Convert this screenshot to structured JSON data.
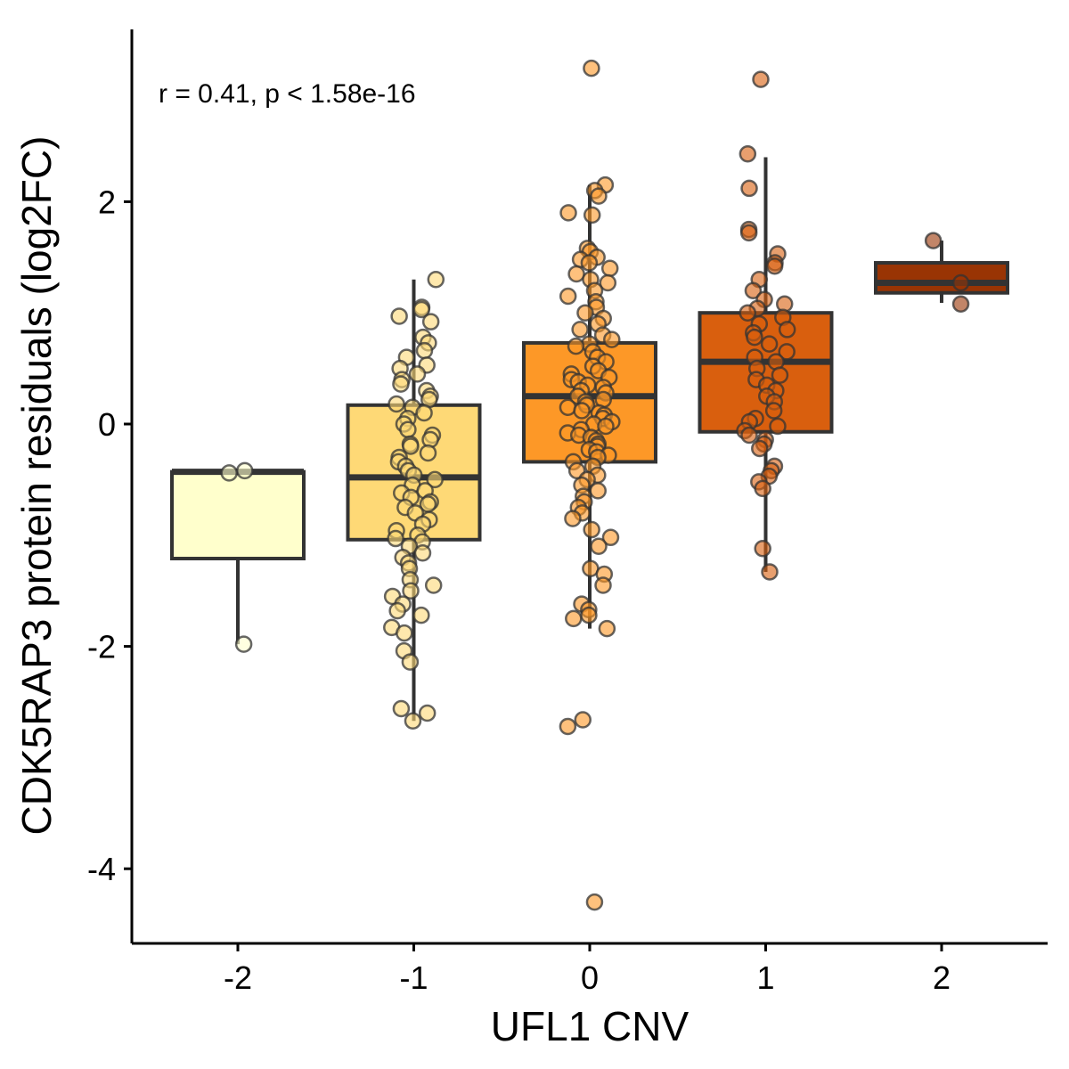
{
  "chart_data": {
    "type": "box",
    "title": "",
    "xlabel": "UFL1 CNV",
    "ylabel": "CDK5RAP3 protein residuals (log2FC)",
    "annotation": "r =  0.41,  p <  1.58e-16",
    "categories": [
      "-2",
      "-1",
      "0",
      "1",
      "2"
    ],
    "yticks": [
      -4,
      -2,
      0,
      2
    ],
    "ytick_labels": [
      "-4",
      "-2",
      "0",
      "2"
    ],
    "ylim": [
      -4.65,
      3.55
    ],
    "grid": false,
    "legend": "none",
    "colors": [
      "#FFFFCC",
      "#FED976",
      "#FD9827",
      "#D95F0E",
      "#993404"
    ],
    "boxes": [
      {
        "category": "-2",
        "q1": -1.21,
        "median": -0.43,
        "q3": -0.43,
        "whisker_low": -1.98,
        "whisker_high": -0.43
      },
      {
        "category": "-1",
        "q1": -1.04,
        "median": -0.48,
        "q3": 0.17,
        "whisker_low": -2.67,
        "whisker_high": 1.3
      },
      {
        "category": "0",
        "q1": -0.34,
        "median": 0.25,
        "q3": 0.73,
        "whisker_low": -1.84,
        "whisker_high": 2.15
      },
      {
        "category": "1",
        "q1": -0.07,
        "median": 0.56,
        "q3": 1.0,
        "whisker_low": -1.33,
        "whisker_high": 2.4
      },
      {
        "category": "2",
        "q1": 1.18,
        "median": 1.27,
        "q3": 1.45,
        "whisker_low": 1.09,
        "whisker_high": 1.65
      }
    ],
    "points": [
      {
        "category": "-2",
        "y": [
          -0.42,
          -0.44,
          -1.98
        ]
      },
      {
        "category": "-1",
        "y": [
          1.3,
          1.05,
          1.03,
          0.97,
          0.92,
          0.78,
          0.73,
          0.66,
          0.6,
          0.53,
          0.5,
          0.45,
          0.4,
          0.36,
          0.3,
          0.25,
          0.22,
          0.18,
          0.15,
          0.1,
          0.05,
          0.0,
          -0.05,
          -0.1,
          -0.14,
          -0.18,
          -0.2,
          -0.26,
          -0.3,
          -0.34,
          -0.38,
          -0.42,
          -0.46,
          -0.5,
          -0.55,
          -0.6,
          -0.62,
          -0.66,
          -0.7,
          -0.72,
          -0.75,
          -0.8,
          -0.86,
          -0.9,
          -0.96,
          -1.0,
          -1.03,
          -1.06,
          -1.1,
          -1.16,
          -1.2,
          -1.25,
          -1.3,
          -1.4,
          -1.45,
          -1.5,
          -1.55,
          -1.62,
          -1.68,
          -1.72,
          -1.83,
          -1.88,
          -2.04,
          -2.14,
          -2.56,
          -2.6,
          -2.67
        ]
      },
      {
        "category": "0",
        "y": [
          3.2,
          2.15,
          2.1,
          2.05,
          1.9,
          1.88,
          1.58,
          1.55,
          1.5,
          1.48,
          1.45,
          1.4,
          1.35,
          1.3,
          1.27,
          1.2,
          1.15,
          1.1,
          1.05,
          1.0,
          0.95,
          0.9,
          0.85,
          0.8,
          0.76,
          0.72,
          0.7,
          0.65,
          0.6,
          0.56,
          0.52,
          0.48,
          0.45,
          0.42,
          0.4,
          0.38,
          0.35,
          0.33,
          0.3,
          0.28,
          0.25,
          0.22,
          0.2,
          0.17,
          0.15,
          0.12,
          0.1,
          0.08,
          0.05,
          0.02,
          0.0,
          -0.02,
          -0.05,
          -0.08,
          -0.1,
          -0.12,
          -0.15,
          -0.18,
          -0.2,
          -0.23,
          -0.25,
          -0.28,
          -0.3,
          -0.34,
          -0.38,
          -0.42,
          -0.46,
          -0.5,
          -0.55,
          -0.6,
          -0.65,
          -0.7,
          -0.75,
          -0.8,
          -0.85,
          -0.95,
          -1.02,
          -1.1,
          -1.3,
          -1.35,
          -1.45,
          -1.62,
          -1.67,
          -1.72,
          -1.75,
          -1.84,
          -2.66,
          -2.72,
          -4.3
        ]
      },
      {
        "category": "1",
        "y": [
          3.1,
          2.43,
          2.12,
          1.75,
          1.72,
          1.53,
          1.45,
          1.42,
          1.3,
          1.2,
          1.12,
          1.08,
          1.04,
          1.0,
          0.96,
          0.9,
          0.85,
          0.82,
          0.78,
          0.72,
          0.65,
          0.6,
          0.56,
          0.5,
          0.44,
          0.4,
          0.35,
          0.3,
          0.25,
          0.2,
          0.12,
          0.05,
          0.02,
          -0.02,
          -0.06,
          -0.1,
          -0.14,
          -0.18,
          -0.22,
          -0.38,
          -0.42,
          -0.47,
          -0.52,
          -0.58,
          -1.12,
          -1.33
        ]
      },
      {
        "category": "2",
        "y": [
          1.65,
          1.27,
          1.08
        ]
      }
    ]
  }
}
